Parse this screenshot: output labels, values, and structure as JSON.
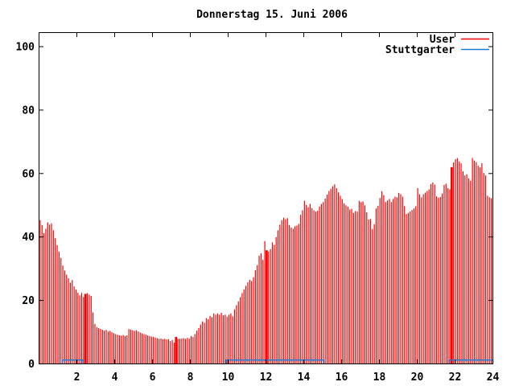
{
  "title": "Donnerstag 15. Juni 2006",
  "legend": [
    {
      "label": "User",
      "color": "#ff0000"
    },
    {
      "label": "Stuttgarter",
      "color": "#1a7ad9"
    }
  ],
  "colors": {
    "axis": "#000000",
    "background": "#ffffff",
    "user_series": "#ff0000",
    "stuttgarter_series": "#1a7ad9"
  },
  "chart_data": {
    "type": "bar",
    "subtype": "impulses",
    "title": "Donnerstag 15. Juni 2006",
    "xlabel": "",
    "ylabel": "",
    "xlim": [
      0,
      24
    ],
    "ylim": [
      0,
      100
    ],
    "x_ticks": [
      2,
      4,
      6,
      8,
      10,
      12,
      14,
      16,
      18,
      20,
      22,
      24
    ],
    "y_ticks": [
      0,
      20,
      40,
      60,
      80,
      100
    ],
    "grid": false,
    "legend_position": "top-right-inside",
    "x_unit": "hour-of-day",
    "x_start": 0,
    "x_step": 0.1,
    "series": [
      {
        "name": "User",
        "color": "#ff0000",
        "style": "impulses",
        "values": [
          45.3,
          43.8,
          41.2,
          42.6,
          44.6,
          43.9,
          44.3,
          42.1,
          39.6,
          37.4,
          35.4,
          33.4,
          31.0,
          29.4,
          28.1,
          27.0,
          25.6,
          26.4,
          24.4,
          23.4,
          22.4,
          21.6,
          22.4,
          21.1,
          22.1,
          22.3,
          21.8,
          21.4,
          16.2,
          12.6,
          11.6,
          11.3,
          11.0,
          10.8,
          10.5,
          10.7,
          10.2,
          10.4,
          10.0,
          9.7,
          9.4,
          9.2,
          9.0,
          8.9,
          9.1,
          8.8,
          9.0,
          11.0,
          10.8,
          10.6,
          10.4,
          10.6,
          10.2,
          9.9,
          9.6,
          9.4,
          9.2,
          9.0,
          8.8,
          8.6,
          8.5,
          8.3,
          8.1,
          7.9,
          8.0,
          7.8,
          7.9,
          7.7,
          7.8,
          7.2,
          7.5,
          6.7,
          8.5,
          7.9,
          7.9,
          8.0,
          8.1,
          7.9,
          8.2,
          7.9,
          8.8,
          8.5,
          9.4,
          10.5,
          11.3,
          12.4,
          13.4,
          13.0,
          14.4,
          14.1,
          15.1,
          14.7,
          15.9,
          15.5,
          15.9,
          15.5,
          16.1,
          15.3,
          15.5,
          14.9,
          15.5,
          15.9,
          15.0,
          17.2,
          18.5,
          19.7,
          21.0,
          22.3,
          23.5,
          24.6,
          25.7,
          26.5,
          26.1,
          27.3,
          29.5,
          31.1,
          34.1,
          34.9,
          32.8,
          38.7,
          35.8,
          35.4,
          36.2,
          38.3,
          37.5,
          40.0,
          42.1,
          43.9,
          45.3,
          46.1,
          45.6,
          45.9,
          43.8,
          43.0,
          42.6,
          43.4,
          43.6,
          44.1,
          47.0,
          48.4,
          51.4,
          50.1,
          49.4,
          50.4,
          49.1,
          48.4,
          48.0,
          48.3,
          49.6,
          50.4,
          51.0,
          52.1,
          53.4,
          54.5,
          55.2,
          56.0,
          56.6,
          55.4,
          54.1,
          53.0,
          52.0,
          50.6,
          50.0,
          49.6,
          48.6,
          48.9,
          47.6,
          48.2,
          48.0,
          51.4,
          51.0,
          51.2,
          50.0,
          47.8,
          45.5,
          45.7,
          42.5,
          44.0,
          49.0,
          49.8,
          52.3,
          54.4,
          53.2,
          51.0,
          51.5,
          52.0,
          51.0,
          52.0,
          52.7,
          52.5,
          53.9,
          53.5,
          52.7,
          49.7,
          47.2,
          47.6,
          48.0,
          48.5,
          49.0,
          49.7,
          55.4,
          53.5,
          52.5,
          53.5,
          54.0,
          54.5,
          55.0,
          56.7,
          57.2,
          56.5,
          52.8,
          52.4,
          52.6,
          53.7,
          56.4,
          56.8,
          55.4,
          55.0,
          62.0,
          63.5,
          64.5,
          64.9,
          63.8,
          63.2,
          60.7,
          59.4,
          59.8,
          58.5,
          57.7,
          64.9,
          64.1,
          63.6,
          62.5,
          61.9,
          63.2,
          60.2,
          59.4,
          53.0,
          52.5,
          52.2
        ]
      },
      {
        "name": "Stuttgarter",
        "color": "#1a7ad9",
        "style": "line",
        "level_value": 1.2,
        "segments_hours": [
          [
            1.25,
            2.33
          ],
          [
            9.9,
            15.05
          ],
          [
            21.7,
            24.0
          ]
        ]
      }
    ],
    "thick_impulses_at_hours": [
      2.4,
      7.2,
      12.0,
      21.8
    ]
  }
}
